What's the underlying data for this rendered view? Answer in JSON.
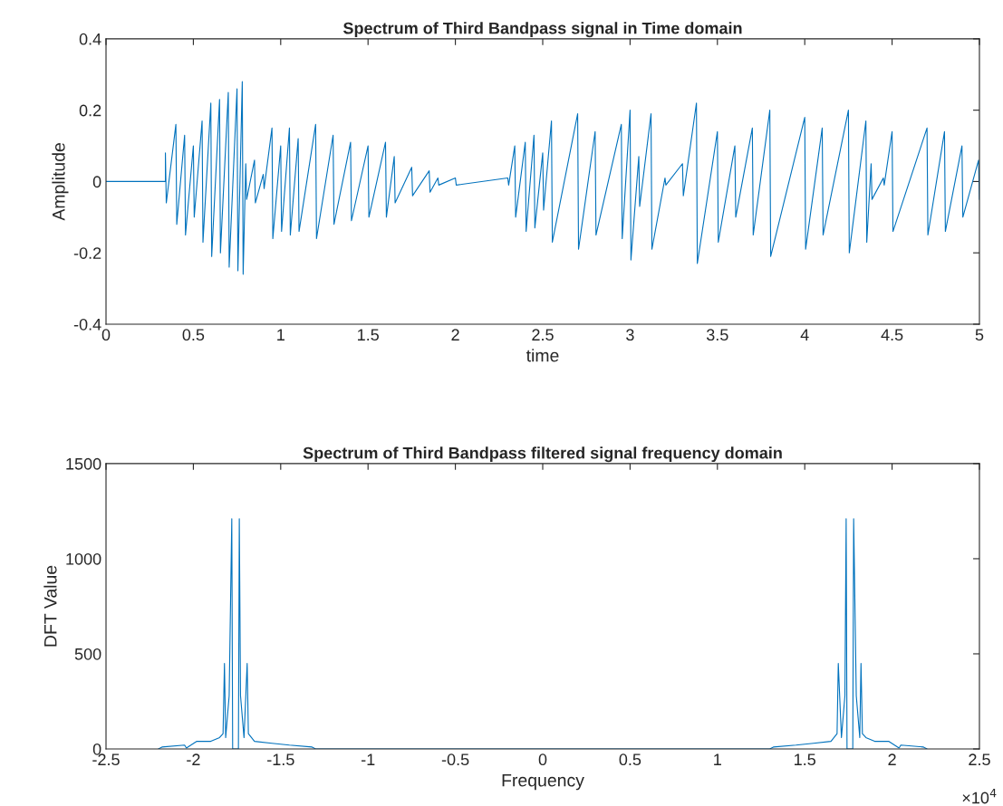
{
  "chart_data": [
    {
      "type": "line",
      "title": "Spectrum of Third Bandpass signal in Time domain",
      "xlabel": "time",
      "ylabel": "Amplitude",
      "xlim": [
        0,
        5
      ],
      "ylim": [
        -0.4,
        0.4
      ],
      "xticks": [
        0,
        0.5,
        1,
        1.5,
        2,
        2.5,
        3,
        3.5,
        4,
        4.5,
        5
      ],
      "yticks": [
        -0.4,
        -0.2,
        0,
        0.2,
        0.4
      ],
      "grid": false,
      "legend": false,
      "series": [
        {
          "color": "#0072bd",
          "x": [
            0,
            0.34,
            0.34,
            0.345,
            0.4,
            0.405,
            0.45,
            0.455,
            0.5,
            0.505,
            0.55,
            0.555,
            0.6,
            0.605,
            0.65,
            0.655,
            0.7,
            0.705,
            0.75,
            0.755,
            0.78,
            0.785,
            0.8,
            0.805,
            0.85,
            0.855,
            0.9,
            0.905,
            0.95,
            0.955,
            1.0,
            1.005,
            1.05,
            1.055,
            1.1,
            1.105,
            1.2,
            1.205,
            1.3,
            1.305,
            1.4,
            1.405,
            1.5,
            1.505,
            1.6,
            1.605,
            1.65,
            1.655,
            1.75,
            1.755,
            1.85,
            1.855,
            1.9,
            1.905,
            2.0,
            2.005,
            2.3,
            2.305,
            2.34,
            2.345,
            2.4,
            2.405,
            2.45,
            2.455,
            2.5,
            2.505,
            2.55,
            2.555,
            2.7,
            2.705,
            2.8,
            2.805,
            2.95,
            2.955,
            3.0,
            3.005,
            3.05,
            3.055,
            3.12,
            3.125,
            3.2,
            3.205,
            3.3,
            3.305,
            3.38,
            3.385,
            3.5,
            3.505,
            3.6,
            3.605,
            3.7,
            3.705,
            3.8,
            3.805,
            4.0,
            4.005,
            4.1,
            4.105,
            4.25,
            4.255,
            4.35,
            4.355,
            4.38,
            4.385,
            4.45,
            4.455,
            4.5,
            4.505,
            4.7,
            4.705,
            4.8,
            4.805,
            4.9,
            4.905,
            4.995,
            5.0
          ],
          "values": [
            0,
            0,
            0.08,
            -0.06,
            0.16,
            -0.12,
            0.13,
            -0.15,
            0.1,
            -0.1,
            0.17,
            -0.17,
            0.22,
            -0.21,
            0.23,
            -0.2,
            0.25,
            -0.24,
            0.26,
            -0.25,
            0.28,
            -0.26,
            0.05,
            -0.05,
            0.06,
            -0.06,
            0.02,
            -0.02,
            0.15,
            -0.16,
            0.1,
            -0.14,
            0.15,
            -0.15,
            0.12,
            -0.14,
            0.16,
            -0.16,
            0.13,
            -0.12,
            0.11,
            -0.11,
            0.1,
            -0.1,
            0.11,
            -0.1,
            0.07,
            -0.06,
            0.04,
            -0.04,
            0.03,
            -0.03,
            0.01,
            -0.01,
            0.01,
            -0.01,
            0.01,
            -0.01,
            0.1,
            -0.1,
            0.11,
            -0.14,
            0.13,
            -0.13,
            0.08,
            -0.08,
            0.17,
            -0.17,
            0.19,
            -0.19,
            0.14,
            -0.15,
            0.16,
            -0.16,
            0.2,
            -0.22,
            0.07,
            -0.07,
            0.19,
            -0.19,
            0.01,
            -0.01,
            0.05,
            -0.04,
            0.22,
            -0.23,
            0.14,
            -0.17,
            0.1,
            -0.1,
            0.15,
            -0.15,
            0.2,
            -0.21,
            0.18,
            -0.19,
            0.15,
            -0.15,
            0.2,
            -0.2,
            0.17,
            -0.17,
            0.05,
            -0.05,
            0.01,
            -0.01,
            0.14,
            -0.14,
            0.15,
            -0.15,
            0.14,
            -0.14,
            0.1,
            -0.1,
            0.06,
            -0.05
          ]
        }
      ]
    },
    {
      "type": "line",
      "title": "Spectrum of Third Bandpass filtered signal frequency domain",
      "xlabel": "Frequency",
      "ylabel": "DFT Value",
      "xlim": [
        -2.5,
        2.5
      ],
      "ylim": [
        0,
        1500
      ],
      "xticks": [
        -2.5,
        -2,
        -1.5,
        -1,
        -0.5,
        0,
        0.5,
        1,
        1.5,
        2,
        2.5
      ],
      "yticks": [
        0,
        500,
        1000,
        1500
      ],
      "grid": false,
      "legend": false,
      "annotations": [
        "×10$^{4}$"
      ],
      "series": [
        {
          "color": "#0072bd",
          "x": [
            -2.2,
            -2.18,
            -2.05,
            -2.04,
            -1.98,
            -1.9,
            -1.85,
            -1.83,
            -1.822,
            -1.815,
            -1.795,
            -1.78,
            -1.775,
            -1.76,
            -1.742,
            -1.737,
            -1.73,
            -1.71,
            -1.692,
            -1.685,
            -1.65,
            -1.55,
            -1.45,
            -1.32,
            -1.3,
            1.3,
            1.32,
            1.45,
            1.55,
            1.65,
            1.685,
            1.692,
            1.71,
            1.73,
            1.737,
            1.742,
            1.76,
            1.775,
            1.78,
            1.795,
            1.815,
            1.822,
            1.83,
            1.85,
            1.9,
            1.98,
            2.04,
            2.05,
            2.18,
            2.2
          ],
          "values": [
            0,
            10,
            20,
            5,
            40,
            40,
            60,
            80,
            450,
            60,
            280,
            1210,
            0,
            0,
            0,
            1210,
            280,
            60,
            450,
            80,
            40,
            30,
            20,
            10,
            0,
            0,
            10,
            20,
            30,
            40,
            80,
            450,
            60,
            280,
            1210,
            0,
            0,
            0,
            1210,
            280,
            60,
            450,
            80,
            60,
            40,
            40,
            5,
            20,
            10,
            0
          ]
        }
      ]
    }
  ]
}
